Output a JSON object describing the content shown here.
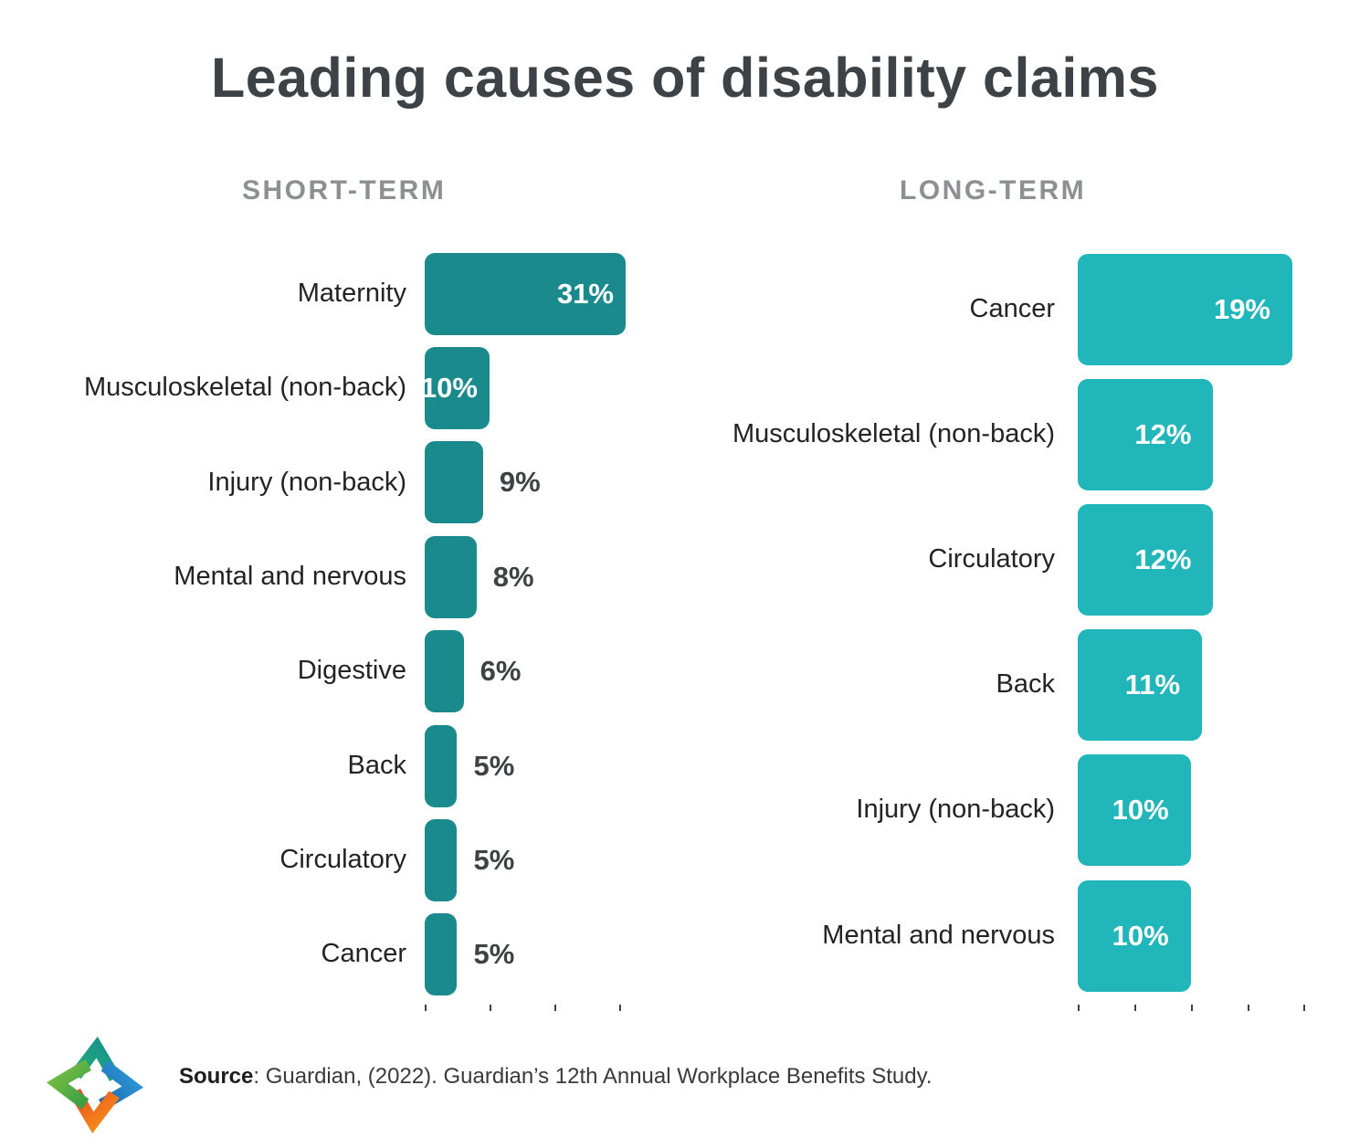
{
  "title": "Leading causes of disability claims",
  "colors": {
    "short_term_bar": "#1A8A8C",
    "long_term_bar": "#21B6B9",
    "title_text": "#3D4247",
    "subtitle_text": "#8C9091",
    "category_label": "#232325",
    "value_inside": "#FFFFFF",
    "value_outside": "#3F4245",
    "tick": "#3F4245"
  },
  "chart_data": [
    {
      "type": "bar",
      "orientation": "horizontal",
      "title": "SHORT-TERM",
      "categories": [
        "Maternity",
        "Musculoskeletal (non-back)",
        "Injury (non-back)",
        "Mental and nervous",
        "Digestive",
        "Back",
        "Circulatory",
        "Cancer"
      ],
      "values": [
        31,
        10,
        9,
        8,
        6,
        5,
        5,
        5
      ],
      "data_labels": [
        "31%",
        "10%",
        "9%",
        "8%",
        "6%",
        "5%",
        "5%",
        "5%"
      ],
      "unit": "%",
      "xlabel": "",
      "ylabel": "",
      "xlim": [
        0,
        31
      ],
      "axis_ticks": [
        0,
        10,
        20,
        30
      ],
      "grid": false,
      "legend": false,
      "bar_color": "#1A8A8C",
      "value_label_inside_min": 10
    },
    {
      "type": "bar",
      "orientation": "horizontal",
      "title": "LONG-TERM",
      "categories": [
        "Cancer",
        "Musculoskeletal (non-back)",
        "Circulatory",
        "Back",
        "Injury (non-back)",
        "Mental and nervous"
      ],
      "values": [
        19,
        12,
        12,
        11,
        10,
        10
      ],
      "data_labels": [
        "19%",
        "12%",
        "12%",
        "11%",
        "10%",
        "10%"
      ],
      "unit": "%",
      "xlabel": "",
      "ylabel": "",
      "xlim": [
        0,
        19
      ],
      "axis_ticks": [
        0,
        5,
        10,
        15,
        20
      ],
      "grid": false,
      "legend": false,
      "bar_color": "#21B6B9",
      "value_label_inside_min": 10
    }
  ],
  "source": {
    "label": "Source",
    "text": ": Guardian, (2022). Guardian’s 12th Annual Workplace Benefits Study."
  },
  "logo": {
    "icon": "four-point-star-logo",
    "point_colors": {
      "top": "#128F93",
      "right": "#1E7DCE",
      "left": "#3FA33C",
      "bottom": "#F58220"
    }
  }
}
